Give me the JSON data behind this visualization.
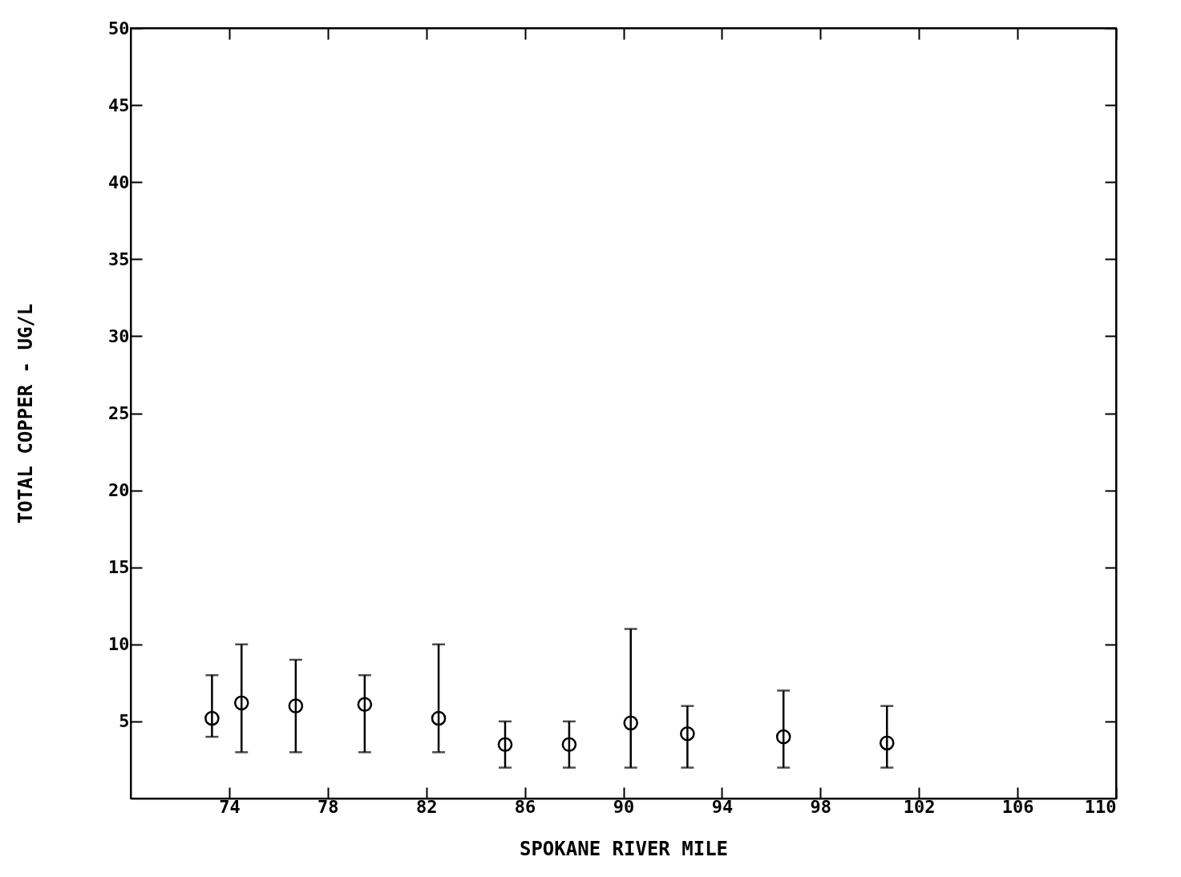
{
  "chart_data": {
    "type": "scatter",
    "xlabel": "SPOKANE RIVER MILE",
    "ylabel": "TOTAL COPPER - UG/L",
    "x": [
      73.3,
      74.5,
      76.7,
      79.5,
      82.5,
      85.2,
      87.8,
      90.3,
      92.6,
      96.5,
      100.7
    ],
    "values": [
      5.2,
      6.2,
      6.0,
      6.1,
      5.2,
      3.5,
      3.5,
      4.9,
      4.2,
      4.0,
      3.6
    ],
    "errors": [
      [
        4,
        8
      ],
      [
        3,
        10
      ],
      [
        3,
        9
      ],
      [
        3,
        8
      ],
      [
        3,
        10
      ],
      [
        2,
        5
      ],
      [
        2,
        5
      ],
      [
        2,
        11
      ],
      [
        2,
        6
      ],
      [
        2,
        7
      ],
      [
        2,
        6
      ]
    ],
    "xlim": [
      70,
      110
    ],
    "xticks": [
      74,
      78,
      82,
      86,
      90,
      94,
      98,
      102,
      106,
      110
    ],
    "ylim": [
      0,
      50
    ],
    "yticks": [
      5,
      10,
      15,
      20,
      25,
      30,
      35,
      40,
      45,
      50
    ],
    "marker": "circle",
    "grid": false
  }
}
